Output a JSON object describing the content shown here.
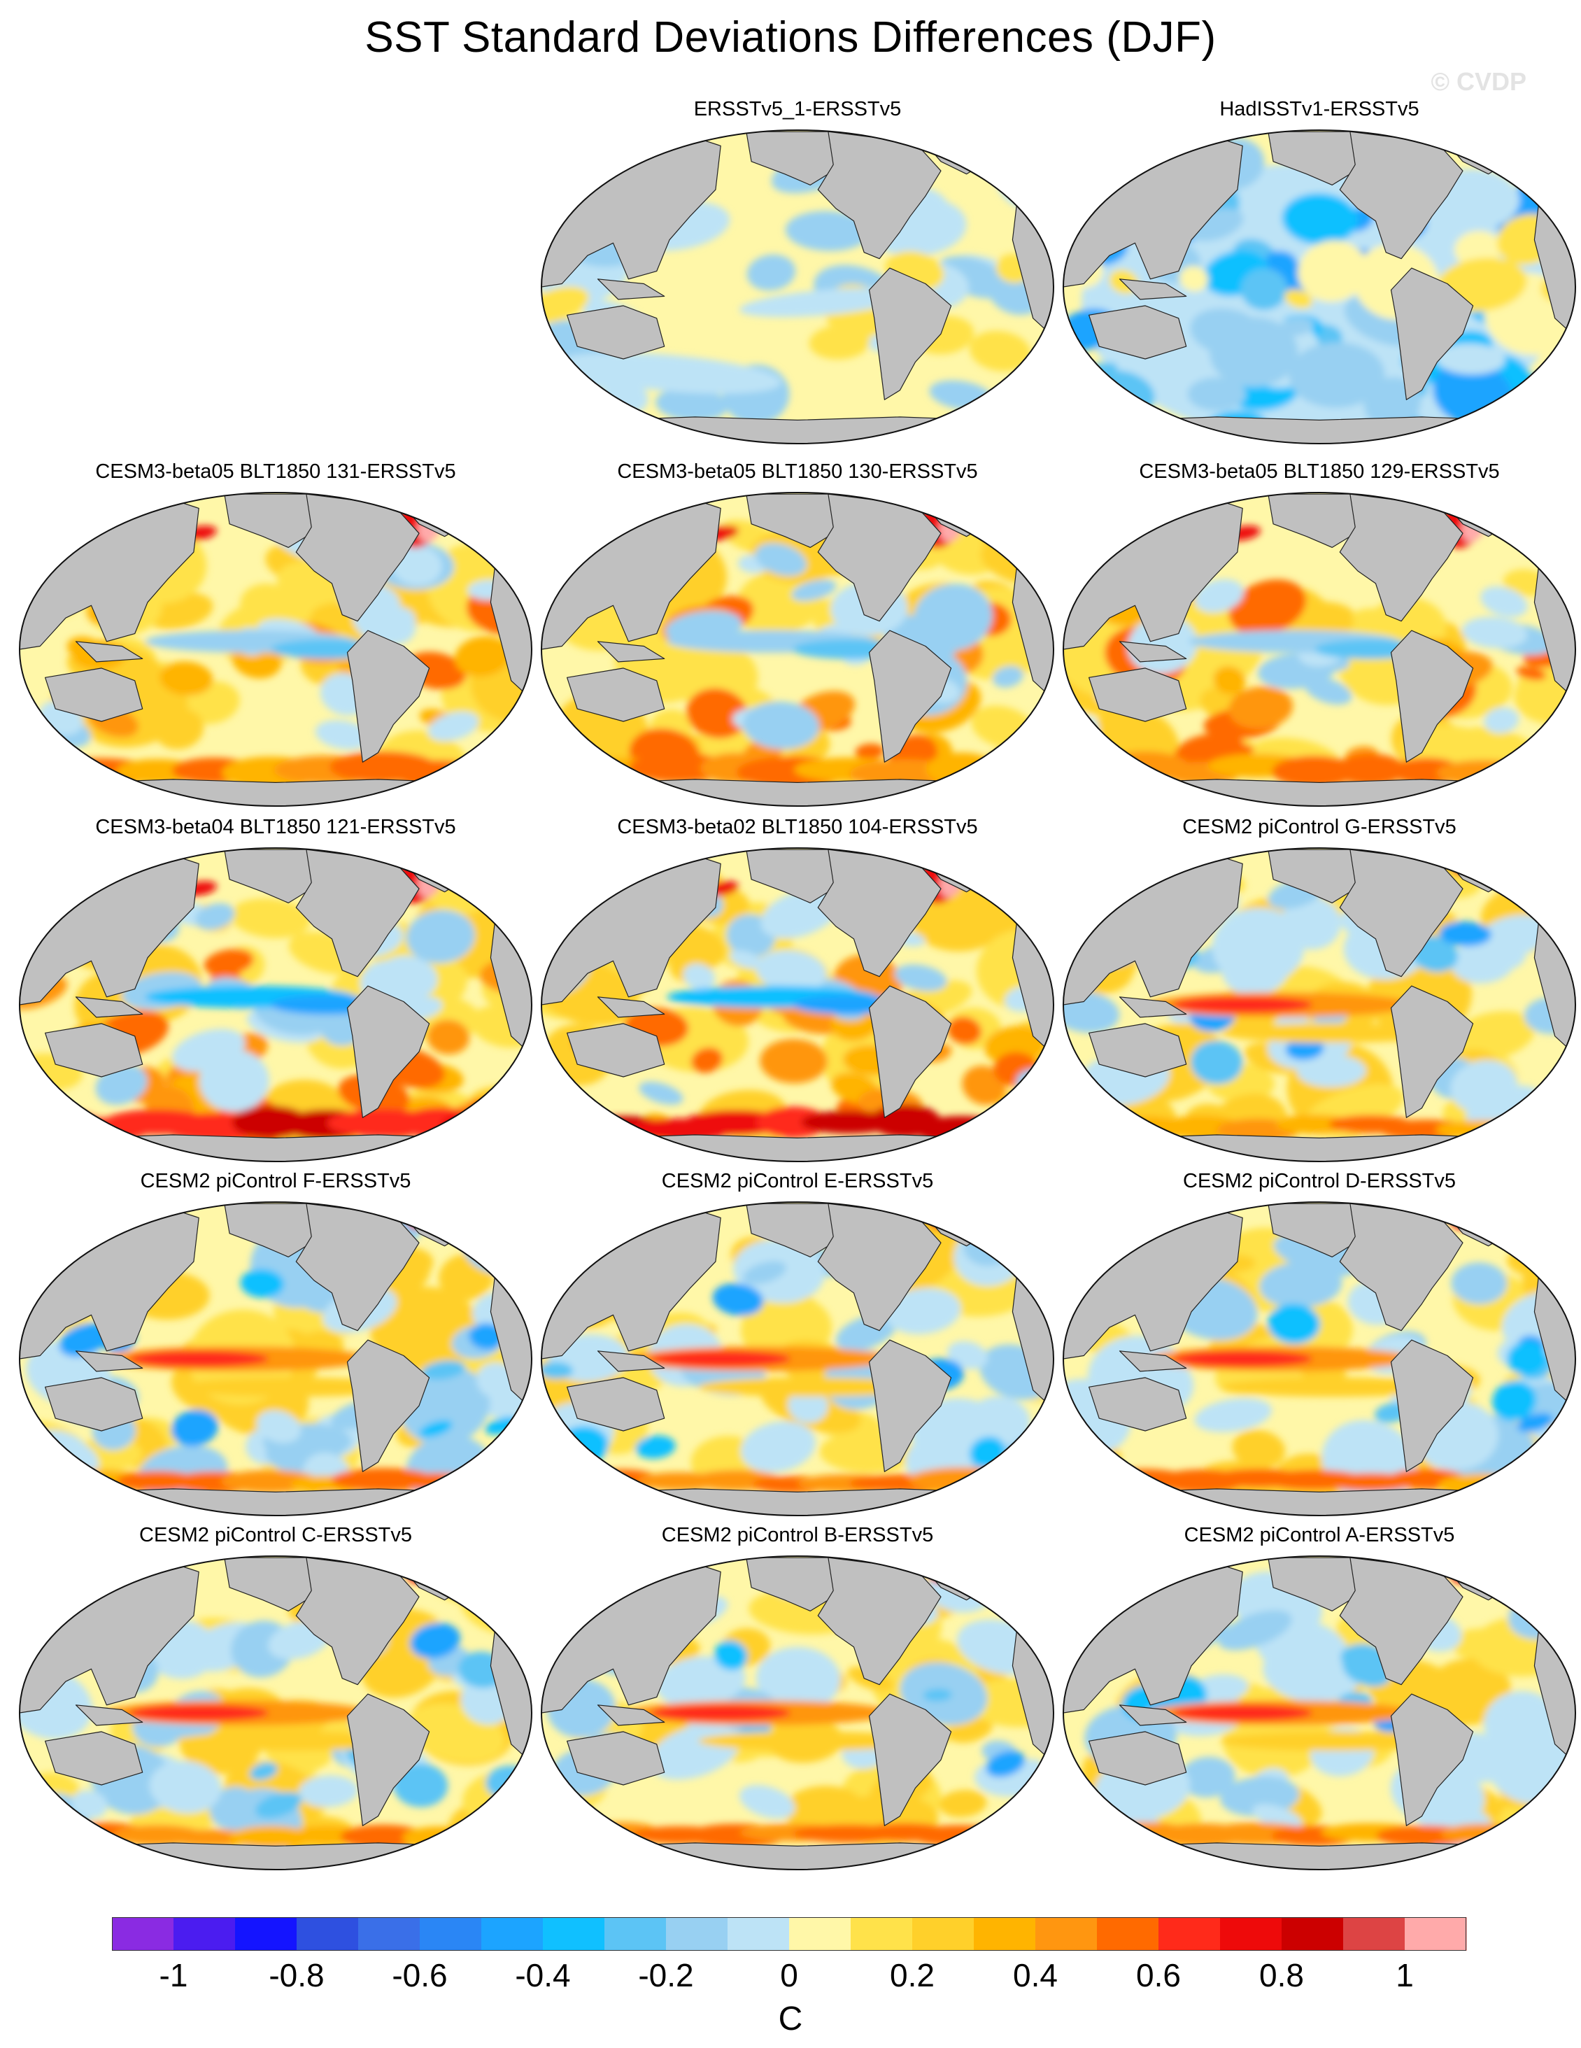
{
  "title": "SST Standard Deviations Differences (DJF)",
  "watermark": "© CVDP",
  "panels": [
    {
      "label": "ERSSTv5_1-ERSSTv5",
      "col": 1,
      "row": 0,
      "mode": "calm"
    },
    {
      "label": "HadISSTv1-ERSSTv5",
      "col": 2,
      "row": 0,
      "mode": "cool"
    },
    {
      "label": "CESM3-beta05 BLT1850 131-ERSSTv5",
      "col": 0,
      "row": 1,
      "mode": "beta"
    },
    {
      "label": "CESM3-beta05 BLT1850 130-ERSSTv5",
      "col": 1,
      "row": 1,
      "mode": "beta"
    },
    {
      "label": "CESM3-beta05 BLT1850 129-ERSSTv5",
      "col": 2,
      "row": 1,
      "mode": "beta"
    },
    {
      "label": "CESM3-beta04 BLT1850 121-ERSSTv5",
      "col": 0,
      "row": 2,
      "mode": "beta-strong"
    },
    {
      "label": "CESM3-beta02 BLT1850 104-ERSSTv5",
      "col": 1,
      "row": 2,
      "mode": "beta-strong"
    },
    {
      "label": "CESM2 piControl G-ERSSTv5",
      "col": 2,
      "row": 2,
      "mode": "cesm2"
    },
    {
      "label": "CESM2 piControl F-ERSSTv5",
      "col": 0,
      "row": 3,
      "mode": "cesm2"
    },
    {
      "label": "CESM2 piControl E-ERSSTv5",
      "col": 1,
      "row": 3,
      "mode": "cesm2"
    },
    {
      "label": "CESM2 piControl D-ERSSTv5",
      "col": 2,
      "row": 3,
      "mode": "cesm2"
    },
    {
      "label": "CESM2 piControl C-ERSSTv5",
      "col": 0,
      "row": 4,
      "mode": "cesm2"
    },
    {
      "label": "CESM2 piControl B-ERSSTv5",
      "col": 1,
      "row": 4,
      "mode": "cesm2"
    },
    {
      "label": "CESM2 piControl A-ERSSTv5",
      "col": 2,
      "row": 4,
      "mode": "cesm2"
    }
  ],
  "colorbar": {
    "colors": [
      "#8a2be2",
      "#4b1cf0",
      "#1414ff",
      "#2e50e0",
      "#3a6fe8",
      "#2a86f5",
      "#1ca4ff",
      "#10c0ff",
      "#5cc4f5",
      "#98d0f2",
      "#bde3f6",
      "#fff7a8",
      "#ffe24a",
      "#ffd02a",
      "#ffb400",
      "#ff9610",
      "#ff6a00",
      "#ff2a1a",
      "#ee0a0a",
      "#cc0000",
      "#dd4444",
      "#ffaaaa"
    ],
    "ticks": [
      "-1",
      "-0.8",
      "-0.6",
      "-0.4",
      "-0.2",
      "0",
      "0.2",
      "0.4",
      "0.6",
      "0.8",
      "1"
    ],
    "units": "C"
  },
  "map_colors": {
    "ocean_base": "#fff7a8",
    "land": "#c0c0c0",
    "coast": "#222222"
  }
}
